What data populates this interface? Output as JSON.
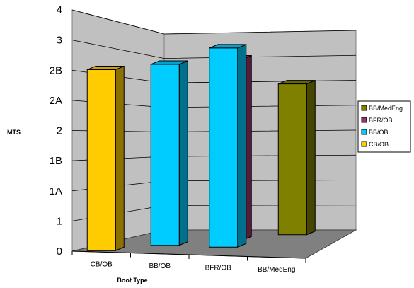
{
  "chart_data": {
    "type": "bar",
    "title": "",
    "xlabel": "Boot Type",
    "ylabel": "MTS",
    "y_tick_labels": [
      "0",
      "1",
      "1A",
      "1B",
      "2",
      "2A",
      "2B",
      "3",
      "4"
    ],
    "ylim": [
      0,
      8
    ],
    "grid": true,
    "legend_position": "right",
    "categories": [
      "CB/OB",
      "BB/OB",
      "BFR/OB",
      "BB/MedEng"
    ],
    "series": [
      {
        "name": "BB/MedEng",
        "color": "#808000",
        "values": [
          null,
          null,
          null,
          5
        ]
      },
      {
        "name": "BFR/OB",
        "color": "#993366",
        "values": [
          null,
          null,
          6,
          null
        ]
      },
      {
        "name": "BB/OB",
        "color": "#00CCFF",
        "values": [
          null,
          6,
          6.6,
          null
        ]
      },
      {
        "name": "CB/OB",
        "color": "#FFCC00",
        "values": [
          6,
          null,
          null,
          null
        ]
      }
    ]
  }
}
